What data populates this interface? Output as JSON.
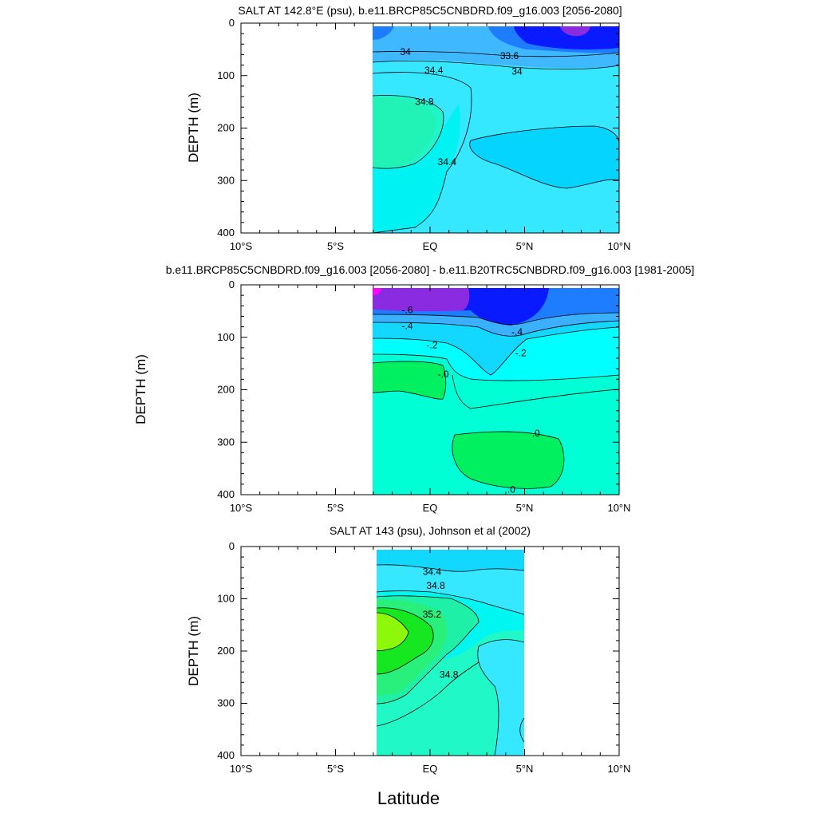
{
  "figure": {
    "x_title": "Latitude"
  },
  "chart_data": [
    {
      "type": "heatmap",
      "title": "SALT AT 142.8°E (psu), b.e11.BRCP85C5CNBDRD.f09_g16.003 [2056-2080]",
      "xlabel": "",
      "ylabel": "DEPTH (m)",
      "xlim": [
        -10,
        10
      ],
      "ylim": [
        400,
        0
      ],
      "x_tick_labels": [
        "10°S",
        "5°S",
        "EQ",
        "5°N",
        "10°N"
      ],
      "x_tick_values": [
        -10,
        -5,
        0,
        5,
        10
      ],
      "y_tick_labels": [
        "0",
        "100",
        "200",
        "300",
        "400"
      ],
      "y_tick_values": [
        0,
        100,
        200,
        300,
        400
      ],
      "data_extent_lat": [
        -3,
        10
      ],
      "data_extent_depth": [
        5,
        400
      ],
      "contour_labels": [
        {
          "text": "34",
          "lat": -1.3,
          "depth": 55
        },
        {
          "text": "33.6",
          "lat": 4.2,
          "depth": 62
        },
        {
          "text": "34",
          "lat": 4.6,
          "depth": 92
        },
        {
          "text": "34.4",
          "lat": 0.2,
          "depth": 90
        },
        {
          "text": "34.8",
          "lat": -0.3,
          "depth": 150
        },
        {
          "text": "34.4",
          "lat": 0.9,
          "depth": 265
        }
      ],
      "colors": {
        "fresh_magenta": "#8a2be2",
        "deep_blue": "#0a1aff",
        "mid_blue": "#1e7dff",
        "light_blue": "#40b8ff",
        "cyan_dark": "#05d4ff",
        "cyan": "#36e8ff",
        "cyan_light": "#00f2f2",
        "aqua": "#1ff5c8",
        "teal_green": "#22f0a8"
      }
    },
    {
      "type": "heatmap",
      "title": "b.e11.BRCP85C5CNBDRD.f09_g16.003 [2056-2080] - b.e11.B20TRC5CNBDRD.f09_g16.003 [1981-2005]",
      "xlabel": "",
      "ylabel": "DEPTH (m)",
      "xlim": [
        -10,
        10
      ],
      "ylim": [
        400,
        0
      ],
      "x_tick_labels": [
        "10°S",
        "5°S",
        "EQ",
        "5°N",
        "10°N"
      ],
      "x_tick_values": [
        -10,
        -5,
        0,
        5,
        10
      ],
      "y_tick_labels": [
        "0",
        "100",
        "200",
        "300",
        "400"
      ],
      "y_tick_values": [
        0,
        100,
        200,
        300,
        400
      ],
      "data_extent_lat": [
        -3,
        10
      ],
      "data_extent_depth": [
        5,
        400
      ],
      "contour_labels": [
        {
          "text": "-.6",
          "lat": -1.2,
          "depth": 48
        },
        {
          "text": "-.4",
          "lat": -1.2,
          "depth": 78
        },
        {
          "text": "-.4",
          "lat": 4.6,
          "depth": 90
        },
        {
          "text": "-.2",
          "lat": 0.1,
          "depth": 115
        },
        {
          "text": "-.2",
          "lat": 4.8,
          "depth": 130
        },
        {
          "text": "-.0",
          "lat": 0.7,
          "depth": 170
        },
        {
          "text": ".0",
          "lat": 5.6,
          "depth": 283
        },
        {
          "text": ".0",
          "lat": 4.3,
          "depth": 390
        }
      ],
      "colors": {
        "magenta": "#ff00ff",
        "purple": "#8a2be2",
        "deep_blue": "#0a1aff",
        "mid_blue": "#1e7dff",
        "light_blue": "#3ab0ff",
        "cyan_dark": "#12d8ff",
        "cyan": "#00ffff",
        "aqua": "#00ffd5",
        "green": "#00f060"
      }
    },
    {
      "type": "heatmap",
      "title": "SALT AT 143 (psu), Johnson et al (2002)",
      "xlabel": "",
      "ylabel": "DEPTH (m)",
      "xlim": [
        -10,
        10
      ],
      "ylim": [
        400,
        0
      ],
      "x_tick_labels": [
        "10°S",
        "5°S",
        "EQ",
        "5°N",
        "10°N"
      ],
      "x_tick_values": [
        -10,
        -5,
        0,
        5,
        10
      ],
      "y_tick_labels": [
        "0",
        "100",
        "200",
        "300",
        "400"
      ],
      "y_tick_values": [
        0,
        100,
        200,
        300,
        400
      ],
      "data_extent_lat": [
        -2.8,
        5
      ],
      "data_extent_depth": [
        5,
        400
      ],
      "contour_labels": [
        {
          "text": "34.4",
          "lat": 0.1,
          "depth": 48
        },
        {
          "text": "34.8",
          "lat": 0.3,
          "depth": 75
        },
        {
          "text": "35.2",
          "lat": 0.1,
          "depth": 130
        },
        {
          "text": "34.8",
          "lat": 1.0,
          "depth": 245
        }
      ],
      "colors": {
        "cyan_dark": "#12d8ff",
        "cyan": "#36e8ff",
        "cyan_light": "#00f6f0",
        "aqua": "#20f8c8",
        "aqua_green": "#1ff0a8",
        "green_light": "#28f07a",
        "green": "#15e820",
        "lime": "#8ef80a"
      }
    }
  ]
}
